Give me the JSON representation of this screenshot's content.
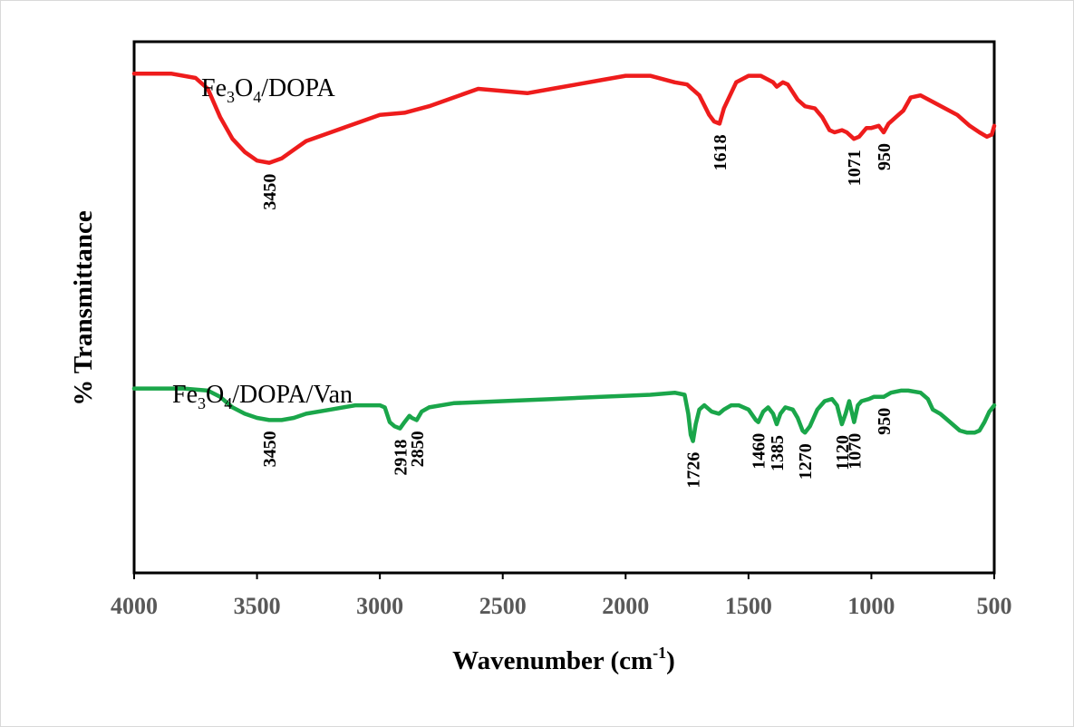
{
  "chart_data": {
    "type": "line",
    "xlabel": "Wavenumber (cm-1)",
    "xlabel_parts": {
      "main": "Wavenumber (cm",
      "sup": "-1",
      "close": ")"
    },
    "ylabel": "% Transmittance",
    "xlim": [
      4000,
      500
    ],
    "x_reversed": true,
    "x_ticks": [
      4000,
      3500,
      3000,
      2500,
      2000,
      1500,
      1000,
      500
    ],
    "y_ticks_shown": false,
    "grid": false,
    "legend": "none (series labeled inline)",
    "colors": {
      "Fe3O4/DOPA": "#ee1c1c",
      "Fe3O4/DOPA/Van": "#1aa64a"
    },
    "series": [
      {
        "name": "Fe3O4/DOPA",
        "label_parts": [
          "Fe",
          "3",
          "O",
          "4",
          "/DOPA"
        ],
        "color": "#ee1c1c",
        "peak_labels": [
          "3450",
          "1618",
          "1071",
          "950"
        ],
        "points": [
          [
            4000,
            92
          ],
          [
            3850,
            92
          ],
          [
            3750,
            90
          ],
          [
            3700,
            85
          ],
          [
            3650,
            72
          ],
          [
            3600,
            62
          ],
          [
            3550,
            56
          ],
          [
            3500,
            52
          ],
          [
            3450,
            51
          ],
          [
            3400,
            53
          ],
          [
            3350,
            57
          ],
          [
            3300,
            61
          ],
          [
            3200,
            65
          ],
          [
            3100,
            69
          ],
          [
            3000,
            73
          ],
          [
            2900,
            74
          ],
          [
            2800,
            77
          ],
          [
            2700,
            81
          ],
          [
            2600,
            85
          ],
          [
            2500,
            84
          ],
          [
            2400,
            83
          ],
          [
            2300,
            85
          ],
          [
            2200,
            87
          ],
          [
            2100,
            89
          ],
          [
            2000,
            91
          ],
          [
            1900,
            91
          ],
          [
            1800,
            88
          ],
          [
            1750,
            87
          ],
          [
            1700,
            82
          ],
          [
            1660,
            73
          ],
          [
            1640,
            70
          ],
          [
            1618,
            69
          ],
          [
            1600,
            76
          ],
          [
            1550,
            88
          ],
          [
            1500,
            91
          ],
          [
            1450,
            91
          ],
          [
            1400,
            88
          ],
          [
            1385,
            86
          ],
          [
            1360,
            88
          ],
          [
            1340,
            87
          ],
          [
            1300,
            80
          ],
          [
            1270,
            77
          ],
          [
            1230,
            76
          ],
          [
            1200,
            72
          ],
          [
            1170,
            66
          ],
          [
            1150,
            65
          ],
          [
            1120,
            66
          ],
          [
            1100,
            65
          ],
          [
            1071,
            62
          ],
          [
            1050,
            63
          ],
          [
            1020,
            67
          ],
          [
            1000,
            67
          ],
          [
            970,
            68
          ],
          [
            950,
            65
          ],
          [
            930,
            69
          ],
          [
            900,
            72
          ],
          [
            870,
            75
          ],
          [
            840,
            81
          ],
          [
            800,
            82
          ],
          [
            750,
            79
          ],
          [
            700,
            76
          ],
          [
            650,
            73
          ],
          [
            600,
            68
          ],
          [
            560,
            65
          ],
          [
            530,
            63
          ],
          [
            510,
            64
          ],
          [
            500,
            68
          ]
        ]
      },
      {
        "name": "Fe3O4/DOPA/Van",
        "label_parts": [
          "Fe",
          "3",
          "O",
          "4",
          "/DOPA/Van"
        ],
        "color": "#1aa64a",
        "peak_labels": [
          "3450",
          "2918",
          "2850",
          "1726",
          "1460",
          "1385",
          "1270",
          "1120",
          "1070",
          "950"
        ],
        "points": [
          [
            4000,
            92
          ],
          [
            3800,
            92
          ],
          [
            3700,
            91
          ],
          [
            3650,
            88
          ],
          [
            3600,
            83
          ],
          [
            3550,
            80
          ],
          [
            3500,
            78
          ],
          [
            3450,
            77
          ],
          [
            3400,
            77
          ],
          [
            3350,
            78
          ],
          [
            3300,
            80
          ],
          [
            3200,
            82
          ],
          [
            3100,
            84
          ],
          [
            3000,
            84
          ],
          [
            2980,
            83
          ],
          [
            2960,
            76
          ],
          [
            2940,
            74
          ],
          [
            2918,
            73
          ],
          [
            2900,
            76
          ],
          [
            2880,
            79
          ],
          [
            2870,
            78
          ],
          [
            2850,
            77
          ],
          [
            2830,
            81
          ],
          [
            2800,
            83
          ],
          [
            2700,
            85
          ],
          [
            2500,
            86
          ],
          [
            2300,
            87
          ],
          [
            2100,
            88
          ],
          [
            1900,
            89
          ],
          [
            1800,
            90
          ],
          [
            1760,
            89
          ],
          [
            1745,
            80
          ],
          [
            1735,
            70
          ],
          [
            1726,
            67
          ],
          [
            1715,
            75
          ],
          [
            1700,
            82
          ],
          [
            1680,
            84
          ],
          [
            1650,
            81
          ],
          [
            1620,
            80
          ],
          [
            1600,
            82
          ],
          [
            1570,
            84
          ],
          [
            1540,
            84
          ],
          [
            1500,
            82
          ],
          [
            1470,
            77
          ],
          [
            1460,
            76
          ],
          [
            1440,
            81
          ],
          [
            1420,
            83
          ],
          [
            1400,
            80
          ],
          [
            1385,
            75
          ],
          [
            1370,
            80
          ],
          [
            1350,
            83
          ],
          [
            1320,
            82
          ],
          [
            1300,
            78
          ],
          [
            1280,
            72
          ],
          [
            1270,
            71
          ],
          [
            1250,
            74
          ],
          [
            1220,
            82
          ],
          [
            1190,
            86
          ],
          [
            1160,
            87
          ],
          [
            1140,
            84
          ],
          [
            1120,
            75
          ],
          [
            1105,
            80
          ],
          [
            1090,
            86
          ],
          [
            1070,
            76
          ],
          [
            1055,
            84
          ],
          [
            1040,
            86
          ],
          [
            1010,
            87
          ],
          [
            990,
            88
          ],
          [
            950,
            88
          ],
          [
            920,
            90
          ],
          [
            880,
            91
          ],
          [
            850,
            91
          ],
          [
            800,
            90
          ],
          [
            770,
            87
          ],
          [
            750,
            82
          ],
          [
            720,
            80
          ],
          [
            700,
            78
          ],
          [
            670,
            75
          ],
          [
            640,
            72
          ],
          [
            610,
            71
          ],
          [
            580,
            71
          ],
          [
            560,
            72
          ],
          [
            540,
            76
          ],
          [
            520,
            81
          ],
          [
            500,
            84
          ]
        ]
      }
    ]
  }
}
